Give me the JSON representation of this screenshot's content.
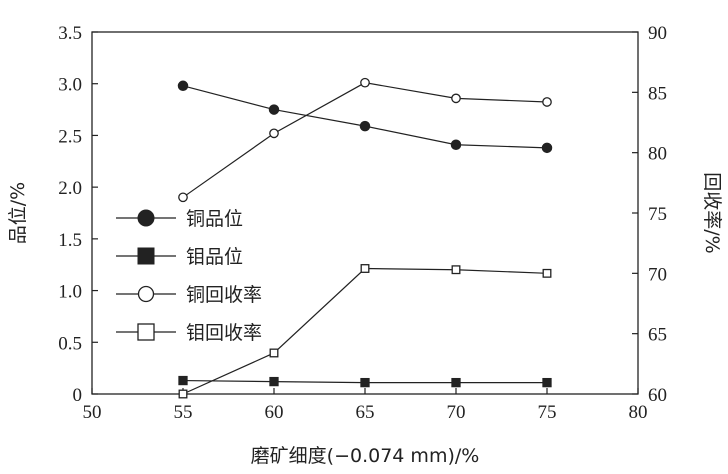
{
  "chart_data": {
    "type": "line",
    "x": [
      55,
      60,
      65,
      70,
      75
    ],
    "xlim": [
      50,
      80
    ],
    "xticks": [
      "50",
      "55",
      "60",
      "65",
      "70",
      "75",
      "80"
    ],
    "xlabel": "磨矿细度(−0.074 mm)/%",
    "ylabel_left": "品位/%",
    "ylim_left": [
      0,
      3.5
    ],
    "yticks_left": [
      "0",
      "0.5",
      "1.0",
      "1.5",
      "2.0",
      "2.5",
      "3.0",
      "3.5"
    ],
    "ylabel_right": "回收率/%",
    "ylim_right": [
      60,
      90
    ],
    "yticks_right": [
      "60",
      "65",
      "70",
      "75",
      "80",
      "85",
      "90"
    ],
    "grid": false,
    "legend_position": "left-middle",
    "series": [
      {
        "name": "铜品位",
        "axis": "left",
        "marker": "filled-circle",
        "values": [
          2.98,
          2.75,
          2.59,
          2.41,
          2.38
        ]
      },
      {
        "name": "钼品位",
        "axis": "left",
        "marker": "filled-square",
        "values": [
          0.13,
          0.12,
          0.11,
          0.11,
          0.11
        ]
      },
      {
        "name": "铜回收率",
        "axis": "right",
        "marker": "open-circle",
        "values": [
          76.3,
          81.6,
          85.8,
          84.5,
          84.2
        ]
      },
      {
        "name": "钼回收率",
        "axis": "right",
        "marker": "open-square",
        "values": [
          60.0,
          63.4,
          70.4,
          70.3,
          70.0
        ]
      }
    ],
    "colors": {
      "line": "#222222",
      "marker": "#222222",
      "background": "#ffffff"
    }
  }
}
